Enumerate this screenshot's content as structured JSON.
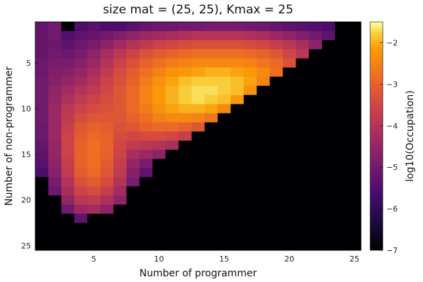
{
  "chart_data": {
    "type": "heatmap",
    "title": "size mat = (25, 25), Kmax = 25",
    "xlabel": "Number of programmer",
    "ylabel": "Number of non-programmer",
    "colorbar_label": "log10(Occupation)",
    "colormap": "inferno",
    "clim": [
      -7,
      -1.5
    ],
    "x_ticks": [
      5,
      10,
      15,
      20,
      25
    ],
    "y_ticks": [
      5,
      10,
      15,
      20,
      25
    ],
    "colorbar_ticks": [
      -2,
      -3,
      -4,
      -5,
      -6,
      -7
    ],
    "n_cols": 25,
    "n_rows": 25,
    "masked_value": -7,
    "values": [
      [
        -5.2,
        -5.0,
        -7,
        -5.6,
        -5.4,
        -5.6,
        -5.6,
        -5.4,
        -5.2,
        -5.1,
        -5.1,
        -5.0,
        -5.0,
        -4.9,
        -4.9,
        -4.9,
        -5.0,
        -5.1,
        -5.2,
        -5.3,
        -5.4,
        -5.5,
        -5.6,
        -7,
        -7
      ],
      [
        -5.2,
        -5.0,
        -5.5,
        -5.3,
        -5.2,
        -5.0,
        -4.8,
        -4.6,
        -4.4,
        -4.3,
        -4.2,
        -4.1,
        -4.0,
        -4.0,
        -4.0,
        -4.0,
        -4.1,
        -4.2,
        -4.4,
        -4.6,
        -4.8,
        -5.0,
        -5.3,
        -7,
        -7
      ],
      [
        -5.2,
        -5.1,
        -5.3,
        -5.1,
        -4.9,
        -4.6,
        -4.3,
        -4.0,
        -3.8,
        -3.6,
        -3.5,
        -3.4,
        -3.3,
        -3.3,
        -3.3,
        -3.3,
        -3.4,
        -3.5,
        -3.7,
        -3.9,
        -4.2,
        -4.6,
        -7,
        -7,
        -7
      ],
      [
        -5.2,
        -5.0,
        -5.1,
        -4.9,
        -4.6,
        -4.2,
        -3.9,
        -3.6,
        -3.3,
        -3.1,
        -3.0,
        -2.9,
        -2.8,
        -2.8,
        -2.8,
        -2.8,
        -2.9,
        -3.0,
        -3.2,
        -3.5,
        -3.9,
        -7,
        -7,
        -7,
        -7
      ],
      [
        -5.1,
        -4.9,
        -4.9,
        -4.7,
        -4.4,
        -4.0,
        -3.6,
        -3.3,
        -3.0,
        -2.8,
        -2.6,
        -2.5,
        -2.4,
        -2.4,
        -2.4,
        -2.4,
        -2.5,
        -2.7,
        -2.9,
        -3.3,
        -7,
        -7,
        -7,
        -7,
        -7
      ],
      [
        -5.1,
        -4.8,
        -4.7,
        -4.5,
        -4.2,
        -3.8,
        -3.4,
        -3.1,
        -2.8,
        -2.5,
        -2.3,
        -2.2,
        -2.1,
        -2.0,
        -2.0,
        -2.1,
        -2.2,
        -2.4,
        -2.8,
        -7,
        -7,
        -7,
        -7,
        -7,
        -7
      ],
      [
        -5.0,
        -4.7,
        -4.5,
        -4.3,
        -4.0,
        -3.6,
        -3.3,
        -3.0,
        -2.6,
        -2.3,
        -2.1,
        -1.9,
        -1.8,
        -1.8,
        -1.8,
        -1.9,
        -2.1,
        -2.5,
        -7,
        -7,
        -7,
        -7,
        -7,
        -7,
        -7
      ],
      [
        -5.0,
        -4.6,
        -4.3,
        -4.0,
        -3.8,
        -3.5,
        -3.2,
        -2.9,
        -2.5,
        -2.2,
        -2.0,
        -1.8,
        -1.7,
        -1.7,
        -1.8,
        -1.9,
        -2.3,
        -7,
        -7,
        -7,
        -7,
        -7,
        -7,
        -7,
        -7
      ],
      [
        -5.0,
        -4.5,
        -4.1,
        -3.8,
        -3.6,
        -3.4,
        -3.2,
        -2.9,
        -2.5,
        -2.2,
        -2.0,
        -1.8,
        -1.7,
        -1.8,
        -1.9,
        -2.2,
        -7,
        -7,
        -7,
        -7,
        -7,
        -7,
        -7,
        -7,
        -7
      ],
      [
        -5.0,
        -4.4,
        -3.9,
        -3.6,
        -3.4,
        -3.3,
        -3.2,
        -2.9,
        -2.6,
        -2.3,
        -2.1,
        -2.0,
        -2.0,
        -2.1,
        -2.4,
        -7,
        -7,
        -7,
        -7,
        -7,
        -7,
        -7,
        -7,
        -7,
        -7
      ],
      [
        -5.0,
        -4.4,
        -3.8,
        -3.4,
        -3.2,
        -3.2,
        -3.2,
        -3.0,
        -2.8,
        -2.5,
        -2.4,
        -2.4,
        -2.5,
        -2.7,
        -7,
        -7,
        -7,
        -7,
        -7,
        -7,
        -7,
        -7,
        -7,
        -7,
        -7
      ],
      [
        -5.1,
        -4.4,
        -3.7,
        -3.2,
        -3.0,
        -3.1,
        -3.3,
        -3.2,
        -3.0,
        -2.9,
        -2.9,
        -3.0,
        -3.2,
        -7,
        -7,
        -7,
        -7,
        -7,
        -7,
        -7,
        -7,
        -7,
        -7,
        -7,
        -7
      ],
      [
        -5.1,
        -4.4,
        -3.6,
        -3.1,
        -2.9,
        -3.0,
        -3.4,
        -3.5,
        -3.4,
        -3.4,
        -3.5,
        -3.7,
        -7,
        -7,
        -7,
        -7,
        -7,
        -7,
        -7,
        -7,
        -7,
        -7,
        -7,
        -7,
        -7
      ],
      [
        -5.2,
        -4.5,
        -3.6,
        -3.0,
        -2.8,
        -3.0,
        -3.5,
        -3.8,
        -3.9,
        -4.0,
        -4.2,
        -7,
        -7,
        -7,
        -7,
        -7,
        -7,
        -7,
        -7,
        -7,
        -7,
        -7,
        -7,
        -7,
        -7
      ],
      [
        -5.3,
        -4.5,
        -3.6,
        -3.0,
        -2.8,
        -3.0,
        -3.6,
        -4.2,
        -4.4,
        -4.6,
        -7,
        -7,
        -7,
        -7,
        -7,
        -7,
        -7,
        -7,
        -7,
        -7,
        -7,
        -7,
        -7,
        -7,
        -7
      ],
      [
        -5.4,
        -4.6,
        -3.7,
        -3.0,
        -2.8,
        -3.1,
        -3.7,
        -4.5,
        -4.9,
        -7,
        -7,
        -7,
        -7,
        -7,
        -7,
        -7,
        -7,
        -7,
        -7,
        -7,
        -7,
        -7,
        -7,
        -7,
        -7
      ],
      [
        -5.6,
        -4.7,
        -3.8,
        -3.1,
        -2.9,
        -3.2,
        -3.8,
        -4.7,
        -5.3,
        -7,
        -7,
        -7,
        -7,
        -7,
        -7,
        -7,
        -7,
        -7,
        -7,
        -7,
        -7,
        -7,
        -7,
        -7,
        -7
      ],
      [
        -7,
        -4.9,
        -4.0,
        -3.3,
        -3.1,
        -3.4,
        -4.0,
        -4.9,
        -7,
        -7,
        -7,
        -7,
        -7,
        -7,
        -7,
        -7,
        -7,
        -7,
        -7,
        -7,
        -7,
        -7,
        -7,
        -7,
        -7
      ],
      [
        -7,
        -5.1,
        -4.2,
        -3.6,
        -3.4,
        -3.7,
        -4.3,
        -7,
        -7,
        -7,
        -7,
        -7,
        -7,
        -7,
        -7,
        -7,
        -7,
        -7,
        -7,
        -7,
        -7,
        -7,
        -7,
        -7,
        -7
      ],
      [
        -7,
        -7,
        -4.5,
        -3.9,
        -3.8,
        -4.1,
        -4.6,
        -7,
        -7,
        -7,
        -7,
        -7,
        -7,
        -7,
        -7,
        -7,
        -7,
        -7,
        -7,
        -7,
        -7,
        -7,
        -7,
        -7,
        -7
      ],
      [
        -7,
        -7,
        -5.0,
        -4.4,
        -4.3,
        -4.6,
        -7,
        -7,
        -7,
        -7,
        -7,
        -7,
        -7,
        -7,
        -7,
        -7,
        -7,
        -7,
        -7,
        -7,
        -7,
        -7,
        -7,
        -7,
        -7
      ],
      [
        -7,
        -7,
        -7,
        -5.3,
        -7,
        -7,
        -7,
        -7,
        -7,
        -7,
        -7,
        -7,
        -7,
        -7,
        -7,
        -7,
        -7,
        -7,
        -7,
        -7,
        -7,
        -7,
        -7,
        -7,
        -7
      ],
      [
        -7,
        -7,
        -7,
        -7,
        -7,
        -7,
        -7,
        -7,
        -7,
        -7,
        -7,
        -7,
        -7,
        -7,
        -7,
        -7,
        -7,
        -7,
        -7,
        -7,
        -7,
        -7,
        -7,
        -7,
        -7
      ],
      [
        -7,
        -7,
        -7,
        -7,
        -7,
        -7,
        -7,
        -7,
        -7,
        -7,
        -7,
        -7,
        -7,
        -7,
        -7,
        -7,
        -7,
        -7,
        -7,
        -7,
        -7,
        -7,
        -7,
        -7,
        -7
      ],
      [
        -7,
        -7,
        -7,
        -7,
        -7,
        -7,
        -7,
        -7,
        -7,
        -7,
        -7,
        -7,
        -7,
        -7,
        -7,
        -7,
        -7,
        -7,
        -7,
        -7,
        -7,
        -7,
        -7,
        -7,
        -7
      ]
    ]
  }
}
